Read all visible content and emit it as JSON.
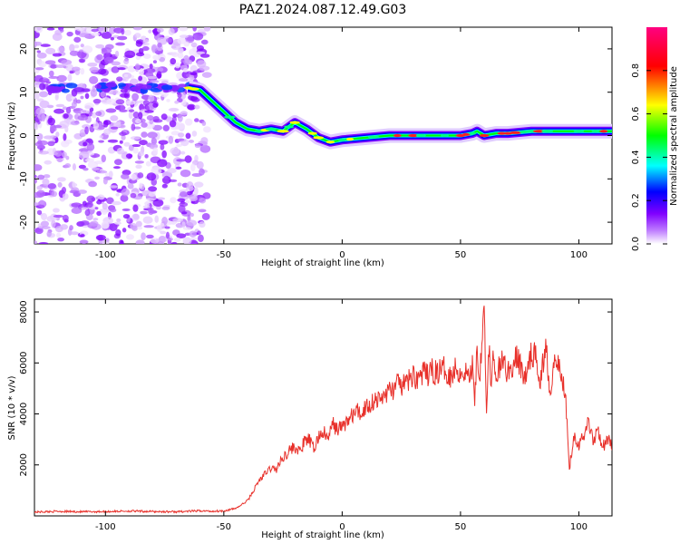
{
  "title": "PAZ1.2024.087.12.49.G03",
  "chart_data": [
    {
      "type": "heatmap",
      "xlabel": "Height of straight line (km)",
      "ylabel": "Frequency (Hz)",
      "xlim": [
        -130,
        114
      ],
      "ylim": [
        -25,
        25
      ],
      "xticks": [
        -100,
        -50,
        0,
        50,
        100
      ],
      "yticks": [
        -20,
        -10,
        0,
        10,
        20
      ],
      "colorbar": {
        "label": "Normalized spectral amplitude",
        "range": [
          0,
          1
        ],
        "ticks": [
          0.0,
          0.2,
          0.4,
          0.6,
          0.8
        ],
        "colors": [
          "#ffffff",
          "#8000ff",
          "#0000ff",
          "#00ffff",
          "#00ff00",
          "#ffff00",
          "#ff0000",
          "#ff00aa"
        ]
      },
      "ridge": {
        "x": [
          -65,
          -60,
          -55,
          -50,
          -45,
          -40,
          -35,
          -30,
          -25,
          -20,
          -15,
          -10,
          -5,
          0,
          10,
          20,
          30,
          40,
          50,
          55,
          57,
          60,
          65,
          70,
          80,
          90,
          100,
          114
        ],
        "y": [
          11,
          10.5,
          8,
          5.5,
          3,
          1.5,
          1,
          1.5,
          1,
          3,
          1.5,
          -0.5,
          -1.5,
          -1,
          -0.5,
          0,
          0,
          0,
          0,
          0.5,
          1,
          0,
          0.5,
          0.5,
          1,
          1,
          1,
          1
        ]
      }
    },
    {
      "type": "line",
      "xlabel": "Height of straight line (km)",
      "ylabel": "SNR (10 * v/v)",
      "xlim": [
        -130,
        114
      ],
      "ylim": [
        0,
        8500
      ],
      "xticks": [
        -100,
        -50,
        0,
        50,
        100
      ],
      "yticks": [
        2000,
        4000,
        6000,
        8000
      ],
      "color": "#e8302a",
      "x": [
        -130,
        -120,
        -110,
        -100,
        -90,
        -80,
        -70,
        -60,
        -55,
        -50,
        -47,
        -45,
        -43,
        -40,
        -38,
        -35,
        -32,
        -30,
        -28,
        -25,
        -22,
        -20,
        -18,
        -16,
        -14,
        -12,
        -10,
        -8,
        -6,
        -4,
        -2,
        0,
        2,
        4,
        6,
        8,
        10,
        12,
        14,
        16,
        18,
        20,
        22,
        24,
        26,
        28,
        30,
        32,
        34,
        36,
        38,
        40,
        42,
        44,
        46,
        48,
        50,
        52,
        54,
        55,
        56,
        57,
        58,
        59,
        60,
        61,
        62,
        63,
        64,
        65,
        66,
        68,
        70,
        72,
        74,
        76,
        78,
        80,
        82,
        84,
        86,
        88,
        90,
        92,
        94,
        95,
        96,
        98,
        100,
        102,
        104,
        106,
        108,
        110,
        112,
        114
      ],
      "y": [
        150,
        180,
        160,
        170,
        190,
        170,
        160,
        200,
        180,
        200,
        250,
        300,
        400,
        600,
        900,
        1400,
        1700,
        1900,
        1800,
        2300,
        2600,
        2700,
        2500,
        2900,
        3000,
        2600,
        3100,
        3300,
        3000,
        3600,
        3400,
        3500,
        3700,
        3900,
        4100,
        4000,
        4300,
        4400,
        4600,
        4500,
        4800,
        4900,
        5000,
        5200,
        5100,
        5300,
        5500,
        5400,
        5600,
        5500,
        5700,
        5600,
        5800,
        5700,
        5500,
        5800,
        5600,
        5700,
        5400,
        5900,
        4600,
        6600,
        5300,
        7000,
        8500,
        4000,
        6600,
        5200,
        6300,
        5000,
        5700,
        6100,
        5600,
        5900,
        6200,
        5700,
        5400,
        6500,
        6100,
        5300,
        6800,
        4800,
        6600,
        5600,
        5000,
        3900,
        1900,
        3200,
        2800,
        3100,
        3800,
        2900,
        3500,
        2700,
        3000,
        2800
      ]
    }
  ]
}
